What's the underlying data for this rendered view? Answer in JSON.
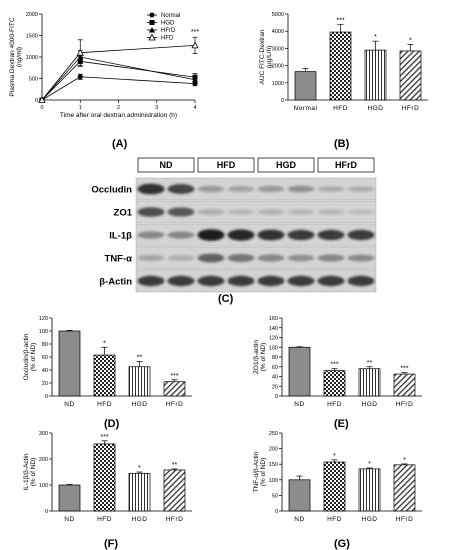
{
  "panels": {
    "a": "(A)",
    "b": "(B)",
    "c": "(C)",
    "d": "(D)",
    "e": "(E)",
    "f": "(F)",
    "g": "(G)"
  },
  "chart_data": [
    {
      "id": "A",
      "type": "line",
      "xlabel": "Time after oral dextran administration (h)",
      "ylabel": "Plasma Dextran 4000-FITC (ng/ml)",
      "ylim": [
        0,
        2000
      ],
      "yticks": [
        "0",
        "500",
        "1000",
        "1500",
        "2000"
      ],
      "xlim": [
        0,
        4
      ],
      "xticks": [
        "0",
        "1",
        "2",
        "3",
        "4"
      ],
      "series": [
        {
          "name": "Normal",
          "x": [
            0,
            1,
            4
          ],
          "values": [
            0,
            540,
            380
          ],
          "errors": [
            0,
            60,
            50
          ],
          "marker": "circle"
        },
        {
          "name": "HGD",
          "x": [
            0,
            1,
            4
          ],
          "values": [
            0,
            900,
            530
          ],
          "errors": [
            0,
            120,
            90
          ],
          "marker": "square"
        },
        {
          "name": "HFrD",
          "x": [
            0,
            1,
            4
          ],
          "values": [
            0,
            1000,
            470
          ],
          "errors": [
            0,
            150,
            80
          ],
          "marker": "triangle"
        },
        {
          "name": "HFD",
          "x": [
            0,
            1,
            4
          ],
          "values": [
            0,
            1100,
            1270
          ],
          "errors": [
            0,
            300,
            190
          ],
          "marker": "triangle-open"
        }
      ],
      "annotations": [
        {
          "x": 4,
          "text": "***"
        }
      ],
      "legend": "top-right"
    },
    {
      "id": "B",
      "type": "bar",
      "ylabel": "AUC FITC-Dextran (μg/L/h)",
      "ylim": [
        0,
        5000
      ],
      "yticks": [
        "0",
        "1000",
        "2000",
        "3000",
        "4000",
        "5000"
      ],
      "categories": [
        "Normal",
        "HFD",
        "HGD",
        "HFrD"
      ],
      "values": [
        1650,
        3950,
        2900,
        2850
      ],
      "errors": [
        180,
        450,
        520,
        380
      ],
      "stars": [
        "",
        "***",
        "*",
        "*"
      ],
      "patterns": [
        "gray",
        "check",
        "vertical",
        "diagonal"
      ]
    },
    {
      "id": "D",
      "type": "bar",
      "ylabel": "Occludin/β-actin (% of ND)",
      "ylim": [
        0,
        120
      ],
      "yticks": [
        "0",
        "20",
        "40",
        "60",
        "80",
        "100",
        "120"
      ],
      "categories": [
        "ND",
        "HFD",
        "HGD",
        "HFrD"
      ],
      "values": [
        100,
        63,
        45,
        22
      ],
      "errors": [
        1,
        12,
        8,
        3
      ],
      "stars": [
        "",
        "*",
        "**",
        "***"
      ],
      "patterns": [
        "gray",
        "check",
        "vertical",
        "diagonal"
      ]
    },
    {
      "id": "E",
      "type": "bar",
      "ylabel": "ZO1/β-actin (% of ND)",
      "ylim": [
        0,
        160
      ],
      "yticks": [
        "0",
        "20",
        "40",
        "60",
        "80",
        "100",
        "120",
        "140",
        "160"
      ],
      "categories": [
        "ND",
        "HFD",
        "HGD",
        "HFrD"
      ],
      "values": [
        100,
        52,
        56,
        45
      ],
      "errors": [
        1,
        4,
        4,
        3
      ],
      "stars": [
        "",
        "***",
        "**",
        "***"
      ],
      "patterns": [
        "gray",
        "check",
        "vertical",
        "diagonal"
      ]
    },
    {
      "id": "F",
      "type": "bar",
      "ylabel": "IL-1β/β-Actin (% of ND)",
      "ylim": [
        0,
        300
      ],
      "yticks": [
        "0",
        "100",
        "200",
        "300"
      ],
      "categories": [
        "ND",
        "HFD",
        "HGD",
        "HFrD"
      ],
      "values": [
        100,
        258,
        145,
        158
      ],
      "errors": [
        2,
        12,
        5,
        4
      ],
      "stars": [
        "",
        "***",
        "*",
        "**"
      ],
      "patterns": [
        "gray",
        "check",
        "vertical",
        "diagonal"
      ]
    },
    {
      "id": "G",
      "type": "bar",
      "ylabel": "TNF-α/β-Actin (% of ND)",
      "ylim": [
        0,
        250
      ],
      "yticks": [
        "0",
        "50",
        "100",
        "150",
        "200",
        "250"
      ],
      "categories": [
        "ND",
        "HFD",
        "HGD",
        "HFrD"
      ],
      "values": [
        100,
        157,
        135,
        148
      ],
      "errors": [
        12,
        7,
        3,
        3
      ],
      "stars": [
        "",
        "*",
        "*",
        "*"
      ],
      "patterns": [
        "gray",
        "check",
        "vertical",
        "diagonal"
      ]
    }
  ],
  "blot": {
    "groups": [
      "ND",
      "HFD",
      "HGD",
      "HFrD"
    ],
    "rows": [
      {
        "label": "Occludin",
        "strength": [
          0.85,
          0.75,
          0.3,
          0.25,
          0.3,
          0.35,
          0.2,
          0.2
        ]
      },
      {
        "label": "ZO1",
        "strength": [
          0.7,
          0.65,
          0.2,
          0.15,
          0.18,
          0.15,
          0.15,
          0.12
        ]
      },
      {
        "label": "IL-1β",
        "strength": [
          0.4,
          0.4,
          0.95,
          0.9,
          0.85,
          0.8,
          0.8,
          0.8
        ]
      },
      {
        "label": "TNF-α",
        "strength": [
          0.25,
          0.2,
          0.6,
          0.5,
          0.4,
          0.35,
          0.4,
          0.38
        ]
      },
      {
        "label": "β-Actin",
        "strength": [
          0.8,
          0.8,
          0.8,
          0.8,
          0.8,
          0.8,
          0.8,
          0.8
        ]
      }
    ]
  }
}
